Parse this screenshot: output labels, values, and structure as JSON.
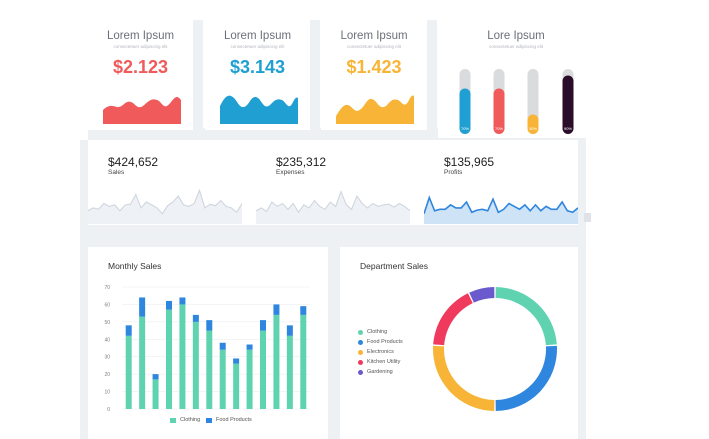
{
  "kpi_cards": [
    {
      "title": "Lorem Ipsum",
      "subtitle": "consectetuer adipiscing elit",
      "value": "$2.123",
      "color": "#f05a5a"
    },
    {
      "title": "Lorem Ipsum",
      "subtitle": "consectetuer adipiscing elit",
      "value": "$3.143",
      "color": "#1f9fd2"
    },
    {
      "title": "Lorem Ipsum",
      "subtitle": "consectetuer adipiscing elit",
      "value": "$1.423",
      "color": "#f7b437"
    }
  ],
  "progress_card": {
    "title": "Lore Ipsum",
    "subtitle": "consectetuer adipiscing elit",
    "bars": [
      {
        "label": "70%",
        "fraction": 0.7,
        "color": "#1f9fd2"
      },
      {
        "label": "70%",
        "fraction": 0.7,
        "color": "#f05a5a"
      },
      {
        "label": "30%",
        "fraction": 0.3,
        "color": "#f7b437"
      },
      {
        "label": "90%",
        "fraction": 0.9,
        "color": "#2a0d2a"
      }
    ]
  },
  "spark_cards": [
    {
      "value": "$424,652",
      "label": "Sales",
      "stroke": "#cfd6de",
      "fill": "#eef2f6"
    },
    {
      "value": "$235,312",
      "label": "Expenses",
      "stroke": "#cfd6de",
      "fill": "#eef2f6"
    },
    {
      "value": "$135,965",
      "label": "Profits",
      "stroke": "#2e86de",
      "fill": "#cfe3f7"
    }
  ],
  "monthly_sales": {
    "title": "Monthly Sales",
    "legend": [
      {
        "label": "Clothing",
        "color": "#5fd3b0"
      },
      {
        "label": "Food Products",
        "color": "#2e86de"
      }
    ]
  },
  "department_sales": {
    "title": "Department Sales",
    "legend": [
      {
        "label": "Clothing",
        "color": "#5fd3b0"
      },
      {
        "label": "Food Products",
        "color": "#2e86de"
      },
      {
        "label": "Electronics",
        "color": "#f7b437"
      },
      {
        "label": "Kitchen Utility",
        "color": "#ef3a5d"
      },
      {
        "label": "Gardening",
        "color": "#6a5acd"
      }
    ]
  },
  "chart_data": [
    {
      "type": "bar",
      "title": "Monthly Sales",
      "stacked": true,
      "ylim": [
        0,
        70
      ],
      "yticks": [
        0,
        10,
        20,
        30,
        40,
        50,
        60,
        70
      ],
      "grid": true,
      "legend_position": "bottom",
      "series": [
        {
          "name": "Clothing",
          "values": [
            42,
            53,
            17,
            57,
            60,
            50,
            45,
            34,
            26,
            34,
            45,
            54,
            42,
            54
          ]
        },
        {
          "name": "Food Products",
          "values": [
            6,
            11,
            3,
            5,
            4,
            4,
            6,
            4,
            3,
            3,
            6,
            6,
            6,
            5
          ]
        }
      ]
    },
    {
      "type": "pie",
      "title": "Department Sales",
      "donut": true,
      "legend_position": "left",
      "categories": [
        "Clothing",
        "Food Products",
        "Electronics",
        "Kitchen Utility",
        "Gardening"
      ],
      "values": [
        24,
        26,
        26,
        17,
        7
      ]
    },
    {
      "type": "line",
      "title": "",
      "series": [
        {
          "name": "",
          "values": [
            18,
            22,
            20,
            28,
            24,
            26,
            18,
            26,
            27,
            40,
            22,
            30,
            26,
            22,
            14,
            25,
            30,
            38,
            26,
            24,
            28,
            46,
            22,
            27,
            25,
            32,
            24,
            22,
            16,
            28
          ]
        }
      ],
      "ylim": [
        0,
        60
      ]
    },
    {
      "type": "line",
      "title": "",
      "series": [
        {
          "name": "",
          "values": [
            18,
            22,
            17,
            30,
            24,
            28,
            20,
            28,
            16,
            26,
            22,
            32,
            24,
            20,
            30,
            24,
            44,
            26,
            20,
            38,
            28,
            22,
            28,
            24,
            26,
            27,
            23,
            28,
            24,
            18
          ]
        }
      ],
      "ylim": [
        0,
        60
      ]
    },
    {
      "type": "line",
      "title": "",
      "series": [
        {
          "name": "",
          "values": [
            14,
            36,
            18,
            20,
            20,
            26,
            22,
            22,
            30,
            16,
            19,
            20,
            18,
            34,
            16,
            20,
            28,
            24,
            20,
            26,
            18,
            26,
            18,
            24,
            20,
            20,
            30,
            18,
            16,
            22
          ]
        }
      ],
      "ylim": [
        0,
        60
      ]
    }
  ]
}
